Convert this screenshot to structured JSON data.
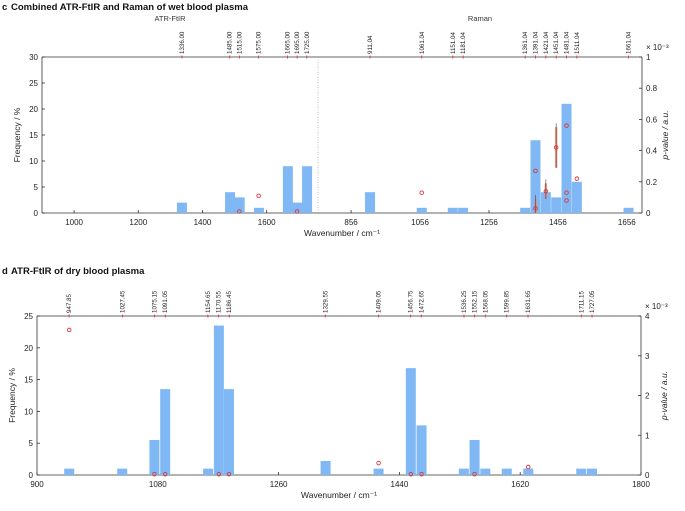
{
  "chart_data": [
    {
      "panel": "c",
      "type": "bar",
      "title": "Combined ATR-FtIR and Raman of wet blood plasma",
      "xlabel": "Wavenumber / cm⁻¹",
      "ylabel": "Frequency / %",
      "y2label": "p-value / a.u.",
      "y2_multiplier": "× 10⁻³",
      "ylim": [
        0,
        30
      ],
      "y2lim": [
        0,
        1
      ],
      "yticks": [
        0,
        5,
        10,
        15,
        20,
        25,
        30
      ],
      "y2ticks": [
        "0",
        "0.2",
        "0.4",
        "0.6",
        "0.8",
        "1"
      ],
      "segments": [
        {
          "name": "ATR-FtIR",
          "xlim": [
            900,
            1760
          ],
          "xticks": [
            {
              "value": 1000,
              "label": "1000"
            },
            {
              "value": 1200,
              "label": "1200"
            },
            {
              "value": 1400,
              "label": "1400"
            },
            {
              "value": 1600,
              "label": "1600"
            }
          ]
        },
        {
          "name": "Raman",
          "xlim": [
            760,
            1700
          ],
          "xticks": [
            {
              "value": 856,
              "label": "856"
            },
            {
              "value": 1056,
              "label": "1056"
            },
            {
              "value": 1256,
              "label": "1256"
            },
            {
              "value": 1456,
              "label": "1456"
            },
            {
              "value": 1656,
              "label": "1656"
            }
          ]
        }
      ],
      "top_markers": [
        {
          "segment": 0,
          "value": 1336.0,
          "label": "1336.00"
        },
        {
          "segment": 0,
          "value": 1485.0,
          "label": "1485.00"
        },
        {
          "segment": 0,
          "value": 1515.0,
          "label": "1515.00"
        },
        {
          "segment": 0,
          "value": 1575.0,
          "label": "1575.00"
        },
        {
          "segment": 0,
          "value": 1665.0,
          "label": "1665.00"
        },
        {
          "segment": 0,
          "value": 1695.0,
          "label": "1695.00"
        },
        {
          "segment": 0,
          "value": 1725.0,
          "label": "1725.00"
        },
        {
          "segment": 1,
          "value": 911.04,
          "label": "911.04"
        },
        {
          "segment": 1,
          "value": 1061.04,
          "label": "1061.04"
        },
        {
          "segment": 1,
          "value": 1151.04,
          "label": "1151.04"
        },
        {
          "segment": 1,
          "value": 1181.04,
          "label": "1181.04"
        },
        {
          "segment": 1,
          "value": 1361.04,
          "label": "1361.04"
        },
        {
          "segment": 1,
          "value": 1391.04,
          "label": "1391.04"
        },
        {
          "segment": 1,
          "value": 1421.04,
          "label": "1421.04"
        },
        {
          "segment": 1,
          "value": 1451.04,
          "label": "1451.04"
        },
        {
          "segment": 1,
          "value": 1481.04,
          "label": "1481.04"
        },
        {
          "segment": 1,
          "value": 1511.04,
          "label": "1511.04"
        },
        {
          "segment": 1,
          "value": 1661.04,
          "label": "1661.04"
        }
      ],
      "bars": [
        {
          "segment": 0,
          "x": 1336,
          "value": 2
        },
        {
          "segment": 0,
          "x": 1486,
          "value": 4
        },
        {
          "segment": 0,
          "x": 1516,
          "value": 3
        },
        {
          "segment": 0,
          "x": 1576,
          "value": 1
        },
        {
          "segment": 0,
          "x": 1666,
          "value": 9
        },
        {
          "segment": 0,
          "x": 1696,
          "value": 2
        },
        {
          "segment": 0,
          "x": 1726,
          "value": 9
        },
        {
          "segment": 1,
          "x": 911,
          "value": 4
        },
        {
          "segment": 1,
          "x": 1061,
          "value": 1
        },
        {
          "segment": 1,
          "x": 1151,
          "value": 1
        },
        {
          "segment": 1,
          "x": 1181,
          "value": 1
        },
        {
          "segment": 1,
          "x": 1361,
          "value": 1
        },
        {
          "segment": 1,
          "x": 1391,
          "value": 14
        },
        {
          "segment": 1,
          "x": 1421,
          "value": 4
        },
        {
          "segment": 1,
          "x": 1451,
          "value": 3
        },
        {
          "segment": 1,
          "x": 1481,
          "value": 21
        },
        {
          "segment": 1,
          "x": 1511,
          "value": 6
        },
        {
          "segment": 1,
          "x": 1661,
          "value": 1
        }
      ],
      "pvalues": [
        {
          "segment": 0,
          "x": 1515,
          "value": 0.01,
          "sd": 0.0
        },
        {
          "segment": 0,
          "x": 1575,
          "value": 0.11,
          "sd": 0.0
        },
        {
          "segment": 0,
          "x": 1695,
          "value": 0.01,
          "sd": 0.0
        },
        {
          "segment": 1,
          "x": 1061,
          "value": 0.13,
          "sd": 0.0
        },
        {
          "segment": 1,
          "x": 1391,
          "value": 0.27,
          "sd": 0.0
        },
        {
          "segment": 1,
          "x": 1391,
          "value": 0.03,
          "sd": 0.06
        },
        {
          "segment": 1,
          "x": 1421,
          "value": 0.14,
          "sd": 0.05
        },
        {
          "segment": 1,
          "x": 1451,
          "value": 0.42,
          "sd": 0.13
        },
        {
          "segment": 1,
          "x": 1481,
          "value": 0.56,
          "sd": 0.0
        },
        {
          "segment": 1,
          "x": 1481,
          "value": 0.13,
          "sd": 0.0
        },
        {
          "segment": 1,
          "x": 1481,
          "value": 0.08,
          "sd": 0.0
        },
        {
          "segment": 1,
          "x": 1511,
          "value": 0.22,
          "sd": 0.0
        }
      ]
    },
    {
      "panel": "d",
      "type": "bar",
      "title": "ATR-FtIR of dry blood plasma",
      "xlabel": "Wavenumber / cm⁻¹",
      "ylabel": "Frequency / %",
      "y2label": "p-value / a.u.",
      "y2_multiplier": "× 10⁻³",
      "xlim": [
        900,
        1800
      ],
      "xticks": [
        900,
        1080,
        1260,
        1440,
        1620,
        1800
      ],
      "ylim": [
        0,
        25
      ],
      "y2lim": [
        0,
        4
      ],
      "yticks": [
        0,
        5,
        10,
        15,
        20,
        25
      ],
      "y2ticks": [
        "0",
        "1",
        "2",
        "3",
        "4"
      ],
      "top_markers": [
        {
          "value": 947.85,
          "label": "947.85"
        },
        {
          "value": 1027.45,
          "label": "1027.45"
        },
        {
          "value": 1075.15,
          "label": "1075.15"
        },
        {
          "value": 1091.05,
          "label": "1091.05"
        },
        {
          "value": 1154.65,
          "label": "1154.65"
        },
        {
          "value": 1170.55,
          "label": "1170.55"
        },
        {
          "value": 1186.45,
          "label": "1186.45"
        },
        {
          "value": 1329.55,
          "label": "1329.55"
        },
        {
          "value": 1409.05,
          "label": "1409.05"
        },
        {
          "value": 1456.75,
          "label": "1456.75"
        },
        {
          "value": 1472.65,
          "label": "1472.65"
        },
        {
          "value": 1536.25,
          "label": "1536.25"
        },
        {
          "value": 1552.15,
          "label": "1552.15"
        },
        {
          "value": 1568.05,
          "label": "1568.05"
        },
        {
          "value": 1599.85,
          "label": "1599.85"
        },
        {
          "value": 1631.65,
          "label": "1631.65"
        },
        {
          "value": 1711.15,
          "label": "1711.15"
        },
        {
          "value": 1727.05,
          "label": "1727.05"
        }
      ],
      "bars": [
        {
          "x": 948,
          "value": 1
        },
        {
          "x": 1027,
          "value": 1
        },
        {
          "x": 1075,
          "value": 5.5
        },
        {
          "x": 1091,
          "value": 13.5
        },
        {
          "x": 1155,
          "value": 1
        },
        {
          "x": 1171,
          "value": 23.5
        },
        {
          "x": 1186,
          "value": 13.5
        },
        {
          "x": 1330,
          "value": 2.2
        },
        {
          "x": 1409,
          "value": 1
        },
        {
          "x": 1457,
          "value": 16.8
        },
        {
          "x": 1473,
          "value": 7.8
        },
        {
          "x": 1536,
          "value": 1
        },
        {
          "x": 1552,
          "value": 5.5
        },
        {
          "x": 1568,
          "value": 1
        },
        {
          "x": 1600,
          "value": 1
        },
        {
          "x": 1632,
          "value": 1
        },
        {
          "x": 1711,
          "value": 1
        },
        {
          "x": 1727,
          "value": 1
        }
      ],
      "pvalues": [
        {
          "x": 948,
          "value": 3.65
        },
        {
          "x": 1075,
          "value": 0.02
        },
        {
          "x": 1091,
          "value": 0.02
        },
        {
          "x": 1171,
          "value": 0.02
        },
        {
          "x": 1186,
          "value": 0.02
        },
        {
          "x": 1409,
          "value": 0.3
        },
        {
          "x": 1457,
          "value": 0.02
        },
        {
          "x": 1473,
          "value": 0.02
        },
        {
          "x": 1552,
          "value": 0.02
        },
        {
          "x": 1632,
          "value": 0.2
        }
      ]
    }
  ],
  "labels": {
    "panel_c_letter": "c",
    "panel_c_title": "Combined ATR-FtIR and Raman of wet blood plasma",
    "panel_c_left_group": "ATR-FtIR",
    "panel_c_right_group": "Raman",
    "panel_d_letter": "d",
    "panel_d_title": "ATR-FtIR of dry blood plasma"
  },
  "colors": {
    "bar": "#7fb8f5",
    "marker": "#d9363e",
    "axis": "#333333",
    "error_bar": "#e88a6e"
  }
}
